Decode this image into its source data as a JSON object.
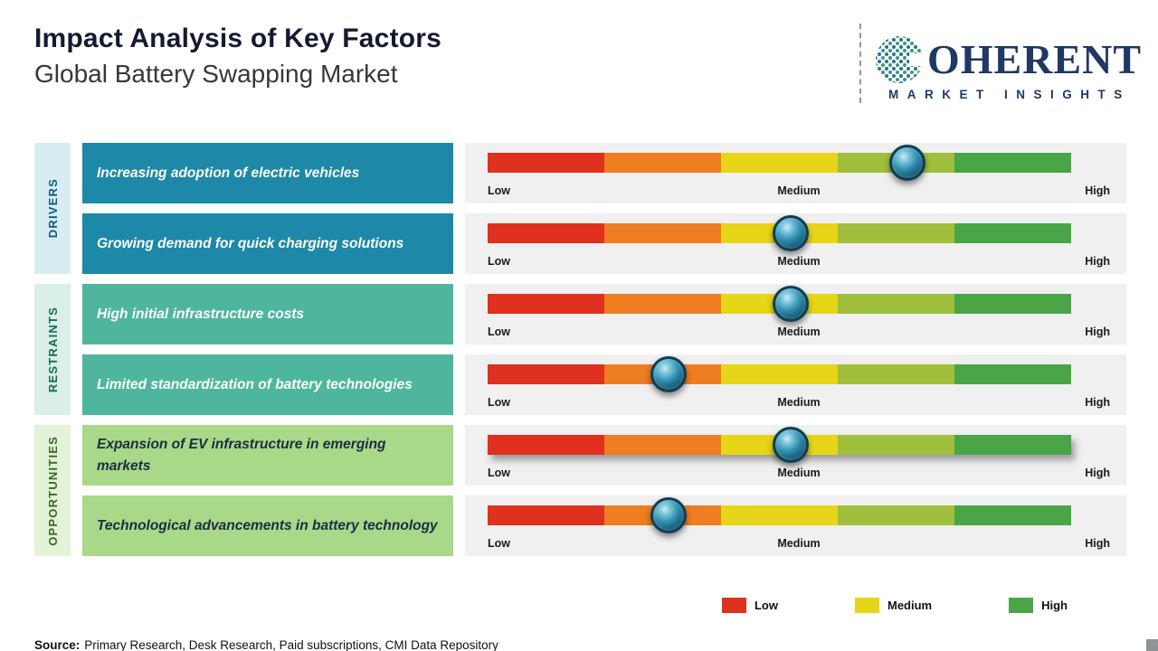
{
  "header": {
    "title": "Impact Analysis of Key Factors",
    "subtitle": "Global Battery Swapping Market",
    "logo": {
      "name": "COHERENT",
      "name_rest": "OHERENT",
      "tagline": "MARKET INSIGHTS"
    }
  },
  "groups": [
    {
      "label": "DRIVERS",
      "tint": "#d8ecf4",
      "label_color": "#0e5a75",
      "box_color": "#1e88a8",
      "text_color": "#ffffff"
    },
    {
      "label": "RESTRAINTS",
      "tint": "#d9efe7",
      "label_color": "#17695a",
      "box_color": "#4fb69e",
      "text_color": "#ffffff"
    },
    {
      "label": "OPPORTUNITIES",
      "tint": "#e3f3d7",
      "label_color": "#38672c",
      "box_color": "#a8d888",
      "text_color": "#1d2c42"
    }
  ],
  "scale_labels": {
    "low": "Low",
    "medium": "Medium",
    "high": "High"
  },
  "colors": {
    "panel_bg": "#f0f0f0",
    "marker_dark": "#0f3e52",
    "segment_colors": [
      "#e0301e",
      "#ef7d22",
      "#e7d518",
      "#a0bf3c",
      "#4aa547"
    ]
  },
  "chart_data": {
    "type": "bar",
    "title": "Impact Analysis of Key Factors",
    "subtitle": "Global Battery Swapping Market",
    "scale": {
      "labels": [
        "Low",
        "Medium",
        "High"
      ],
      "min_pct": 0,
      "max_pct": 100
    },
    "legend_position": "bottom-right",
    "series": [
      {
        "group": "DRIVERS",
        "factor": "Increasing adoption of electric vehicles",
        "impact_pct": 72,
        "impact_level": "Medium-High"
      },
      {
        "group": "DRIVERS",
        "factor": "Growing demand for quick charging solutions",
        "impact_pct": 52,
        "impact_level": "Medium"
      },
      {
        "group": "RESTRAINTS",
        "factor": "High initial infrastructure costs",
        "impact_pct": 52,
        "impact_level": "Medium"
      },
      {
        "group": "RESTRAINTS",
        "factor": "Limited standardization of battery technologies",
        "impact_pct": 31,
        "impact_level": "Low-Medium"
      },
      {
        "group": "OPPORTUNITIES",
        "factor": "Expansion of EV infrastructure in emerging markets",
        "impact_pct": 52,
        "impact_level": "Medium"
      },
      {
        "group": "OPPORTUNITIES",
        "factor": "Technological advancements in battery technology",
        "impact_pct": 31,
        "impact_level": "Low-Medium"
      }
    ]
  },
  "legend": {
    "items": [
      {
        "label": "Low",
        "color": "#e0301e"
      },
      {
        "label": "Medium",
        "color": "#e7d518"
      },
      {
        "label": "High",
        "color": "#4aa547"
      }
    ]
  },
  "source": {
    "label": "Source:",
    "text": "Primary Research, Desk Research, Paid subscriptions, CMI Data Repository"
  }
}
